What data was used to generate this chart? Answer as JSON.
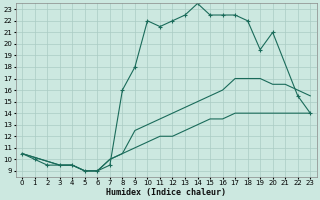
{
  "xlabel": "Humidex (Indice chaleur)",
  "bg_color": "#cce8e0",
  "grid_color": "#aaccc4",
  "line_color": "#1a6b5a",
  "xlim": [
    -0.5,
    23.5
  ],
  "ylim": [
    8.5,
    23.5
  ],
  "xticks": [
    0,
    1,
    2,
    3,
    4,
    5,
    6,
    7,
    8,
    9,
    10,
    11,
    12,
    13,
    14,
    15,
    16,
    17,
    18,
    19,
    20,
    21,
    22,
    23
  ],
  "yticks": [
    9,
    10,
    11,
    12,
    13,
    14,
    15,
    16,
    17,
    18,
    19,
    20,
    21,
    22,
    23
  ],
  "curve1_x": [
    0,
    1,
    2,
    3,
    4,
    5,
    6,
    7,
    8,
    9,
    10,
    11,
    12,
    13,
    14,
    15,
    16,
    17,
    18,
    19,
    20,
    22,
    23
  ],
  "curve1_y": [
    10.5,
    10.0,
    9.5,
    9.5,
    9.5,
    9.0,
    9.0,
    9.5,
    16.0,
    18.0,
    22.0,
    21.5,
    22.0,
    22.5,
    23.5,
    22.5,
    22.5,
    22.5,
    22.0,
    19.5,
    21.0,
    15.5,
    14.0
  ],
  "curve2_x": [
    0,
    3,
    4,
    5,
    6,
    7,
    8,
    9,
    10,
    11,
    12,
    13,
    14,
    15,
    16,
    17,
    18,
    19,
    20,
    21,
    22,
    23
  ],
  "curve2_y": [
    10.5,
    9.5,
    9.5,
    9.0,
    9.0,
    10.0,
    10.5,
    12.5,
    13.0,
    13.5,
    14.0,
    14.5,
    15.0,
    15.5,
    16.0,
    17.0,
    17.0,
    17.0,
    16.5,
    16.5,
    16.0,
    15.5
  ],
  "curve3_x": [
    0,
    3,
    4,
    5,
    6,
    7,
    8,
    9,
    10,
    11,
    12,
    13,
    14,
    15,
    16,
    17,
    18,
    19,
    20,
    21,
    22,
    23
  ],
  "curve3_y": [
    10.5,
    9.5,
    9.5,
    9.0,
    9.0,
    10.0,
    10.5,
    11.0,
    11.5,
    12.0,
    12.0,
    12.5,
    13.0,
    13.5,
    13.5,
    14.0,
    14.0,
    14.0,
    14.0,
    14.0,
    14.0,
    14.0
  ]
}
